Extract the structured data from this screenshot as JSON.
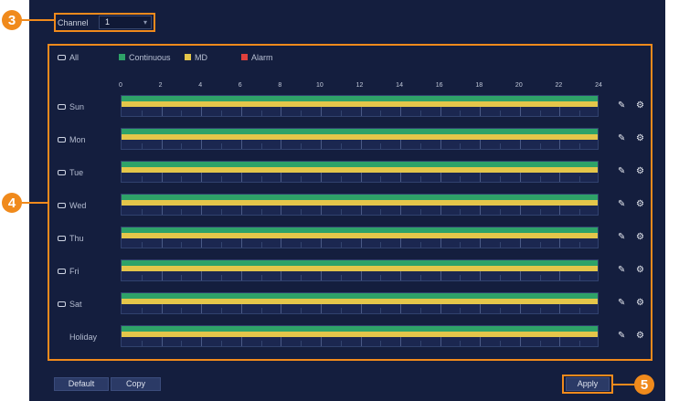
{
  "channel": {
    "label": "Channel",
    "value": "1"
  },
  "legend": {
    "all_label": "All",
    "items": [
      {
        "label": "Continuous",
        "color": "#2ea268"
      },
      {
        "label": "MD",
        "color": "#e4c64a"
      },
      {
        "label": "Alarm",
        "color": "#e0403c"
      }
    ]
  },
  "hours": [
    "0",
    "2",
    "4",
    "6",
    "8",
    "10",
    "12",
    "14",
    "16",
    "18",
    "20",
    "22",
    "24"
  ],
  "days": [
    {
      "label": "Sun",
      "checkbox": true
    },
    {
      "label": "Mon",
      "checkbox": true
    },
    {
      "label": "Tue",
      "checkbox": true
    },
    {
      "label": "Wed",
      "checkbox": true
    },
    {
      "label": "Thu",
      "checkbox": true
    },
    {
      "label": "Fri",
      "checkbox": true
    },
    {
      "label": "Sat",
      "checkbox": true
    },
    {
      "label": "Holiday",
      "checkbox": false
    }
  ],
  "row_icons": [
    "pencil-icon",
    "gear-icon"
  ],
  "buttons": {
    "default": "Default",
    "copy": "Copy",
    "apply": "Apply"
  },
  "callouts": {
    "c3": "3",
    "c4": "4",
    "c5": "5"
  },
  "colors": {
    "accent": "#f08a1c",
    "background": "#141e3e"
  }
}
